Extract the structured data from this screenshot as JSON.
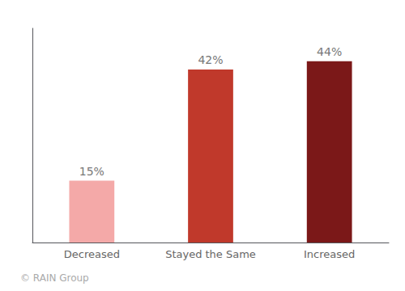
{
  "chart_data": {
    "type": "bar",
    "categories": [
      "Decreased",
      "Stayed the Same",
      "Increased"
    ],
    "values": [
      15,
      42,
      44
    ],
    "value_labels": [
      "15%",
      "42%",
      "44%"
    ],
    "colors": [
      "#F4A9A8",
      "#C0392B",
      "#7B1818"
    ],
    "data_labels": true,
    "ylim": [
      0,
      52
    ],
    "grid": false,
    "tick_labels": "x",
    "annotation": "© RAIN Group"
  }
}
